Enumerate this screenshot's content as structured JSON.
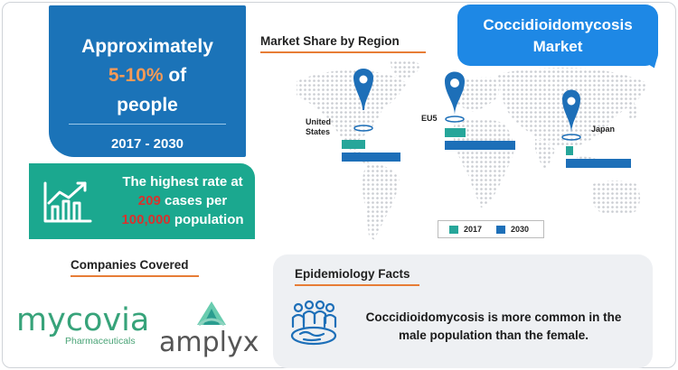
{
  "stat": {
    "line1": "Approximately",
    "highlight": "5-10%",
    "line2_rest": " of",
    "line3": "people",
    "years": "2017 - 2030"
  },
  "rate": {
    "line1": "The highest rate at",
    "number": "209",
    "line2_rest": " cases per",
    "number2": "100,000",
    "line3_rest": " population",
    "icon": "bar-chart-growth-icon"
  },
  "companies": {
    "title": "Companies Covered",
    "items": [
      {
        "name": "mycovia",
        "subtitle": "Pharmaceuticals"
      },
      {
        "name": "amplyx"
      }
    ]
  },
  "market_title": {
    "line1": "Coccidioidomycosis",
    "line2": "Market"
  },
  "map": {
    "title": "Market Share by Region",
    "regions": [
      {
        "label_line1": "United",
        "label_line2": "States",
        "share_2017": 0.2,
        "share_2030": 0.5
      },
      {
        "label_line1": "EU5",
        "label_line2": "",
        "share_2017": 0.18,
        "share_2030": 0.6
      },
      {
        "label_line1": "Japan",
        "label_line2": "",
        "share_2017": 0.06,
        "share_2030": 0.55
      }
    ],
    "legend": [
      {
        "label": "2017",
        "color": "#26a69a"
      },
      {
        "label": "2030",
        "color": "#1d6fb8"
      }
    ],
    "pin_color": "#1d6fb8"
  },
  "epidemiology": {
    "title": "Epidemiology Facts",
    "line1": "Coccidioidomycosis is more common in the",
    "line2": "male population than the female.",
    "icon": "population-group-icon"
  },
  "colors": {
    "stat_blue": "#1b73b8",
    "teal": "#1ba88f",
    "accent_orange": "#f59a57",
    "accent_red": "#d8322d",
    "bubble_blue": "#1e88e5"
  }
}
